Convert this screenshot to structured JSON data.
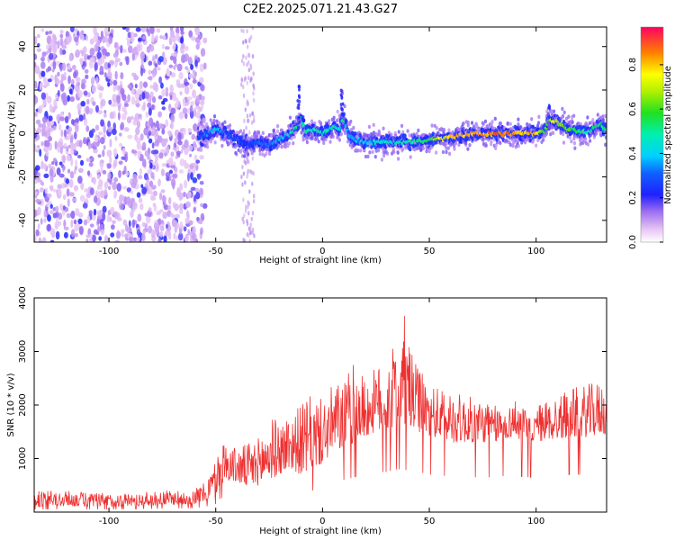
{
  "figure": {
    "title": "C2E2.2025.071.21.43.G27"
  },
  "chart_data": [
    {
      "type": "heatmap",
      "title": "C2E2.2025.071.21.43.G27",
      "xlabel": "Height of straight line (km)",
      "ylabel": "Frequency (Hz)",
      "xlim": [
        -135,
        133
      ],
      "ylim": [
        -50,
        49
      ],
      "xticks": [
        -100,
        -50,
        0,
        50,
        100
      ],
      "yticks": [
        -40,
        -20,
        0,
        20,
        40
      ],
      "colorbar": {
        "label": "Normalized spectral amplitude",
        "range": [
          0,
          0.97
        ],
        "ticks": [
          0.0,
          0.2,
          0.4,
          0.6,
          0.8
        ],
        "colormap": "rainbow (magenta-blue-cyan-green-yellow-red)"
      },
      "ridge": {
        "x": [
          -57,
          -50,
          -45,
          -40,
          -35,
          -30,
          -25,
          -20,
          -15,
          -12,
          -10,
          -8,
          -5,
          0,
          5,
          8,
          10,
          12,
          15,
          20,
          30,
          40,
          50,
          55,
          60,
          70,
          80,
          90,
          100,
          104,
          106,
          108,
          110,
          115,
          120,
          125,
          130,
          133
        ],
        "frequency": [
          -2,
          2,
          0,
          -3,
          -5,
          -4,
          -5,
          -3,
          0,
          3,
          7,
          1,
          2,
          0,
          3,
          2,
          7,
          0,
          -3,
          -4,
          -4,
          -4,
          -3,
          -2,
          -2,
          0,
          0,
          0,
          0,
          1,
          6,
          5,
          5,
          2,
          1,
          1,
          4,
          2
        ],
        "amplitude": [
          0.3,
          0.45,
          0.3,
          0.3,
          0.25,
          0.35,
          0.35,
          0.4,
          0.5,
          0.55,
          0.6,
          0.55,
          0.5,
          0.55,
          0.55,
          0.5,
          0.6,
          0.4,
          0.4,
          0.45,
          0.5,
          0.55,
          0.6,
          0.8,
          0.85,
          0.9,
          0.95,
          0.95,
          0.9,
          0.6,
          0.75,
          0.8,
          0.75,
          0.65,
          0.6,
          0.55,
          0.6,
          0.55
        ]
      },
      "noise_region_x": [
        -135,
        -55
      ]
    },
    {
      "type": "line",
      "xlabel": "Height of straight line (km)",
      "ylabel": "SNR (10 * v/v)",
      "xlim": [
        -135,
        133
      ],
      "ylim": [
        0,
        4000
      ],
      "xticks": [
        -100,
        -50,
        0,
        50,
        100
      ],
      "yticks": [
        1000,
        2000,
        3000,
        4000
      ],
      "color": "#ef3030",
      "envelope": {
        "x": [
          -135,
          -120,
          -100,
          -80,
          -60,
          -55,
          -50,
          -48,
          -45,
          -40,
          -35,
          -30,
          -25,
          -20,
          -15,
          -10,
          -5,
          0,
          5,
          10,
          15,
          20,
          25,
          30,
          35,
          38,
          40,
          42,
          45,
          50,
          55,
          60,
          65,
          70,
          75,
          80,
          85,
          88,
          90,
          92,
          95,
          100,
          105,
          110,
          115,
          120,
          125,
          130,
          133
        ],
        "low": [
          100,
          110,
          100,
          120,
          150,
          200,
          300,
          500,
          600,
          550,
          450,
          500,
          600,
          700,
          800,
          700,
          800,
          900,
          1100,
          1200,
          1300,
          1400,
          1500,
          1500,
          1600,
          1600,
          1550,
          1550,
          1500,
          1400,
          1400,
          1300,
          1300,
          1300,
          1300,
          1300,
          1350,
          1400,
          1400,
          1350,
          1300,
          1300,
          1350,
          1350,
          1400,
          1400,
          1400,
          1450,
          1450
        ],
        "high": [
          400,
          400,
          350,
          380,
          450,
          550,
          1000,
          1400,
          1300,
          1200,
          1300,
          1400,
          1800,
          1700,
          1900,
          2000,
          2200,
          2100,
          2400,
          2500,
          2800,
          2500,
          2700,
          2900,
          3200,
          3700,
          3500,
          2900,
          2700,
          2400,
          2300,
          2300,
          2200,
          2150,
          2100,
          2000,
          1950,
          2000,
          2150,
          2100,
          1900,
          2000,
          2100,
          2200,
          2300,
          2350,
          2400,
          2450,
          2500
        ]
      }
    }
  ]
}
